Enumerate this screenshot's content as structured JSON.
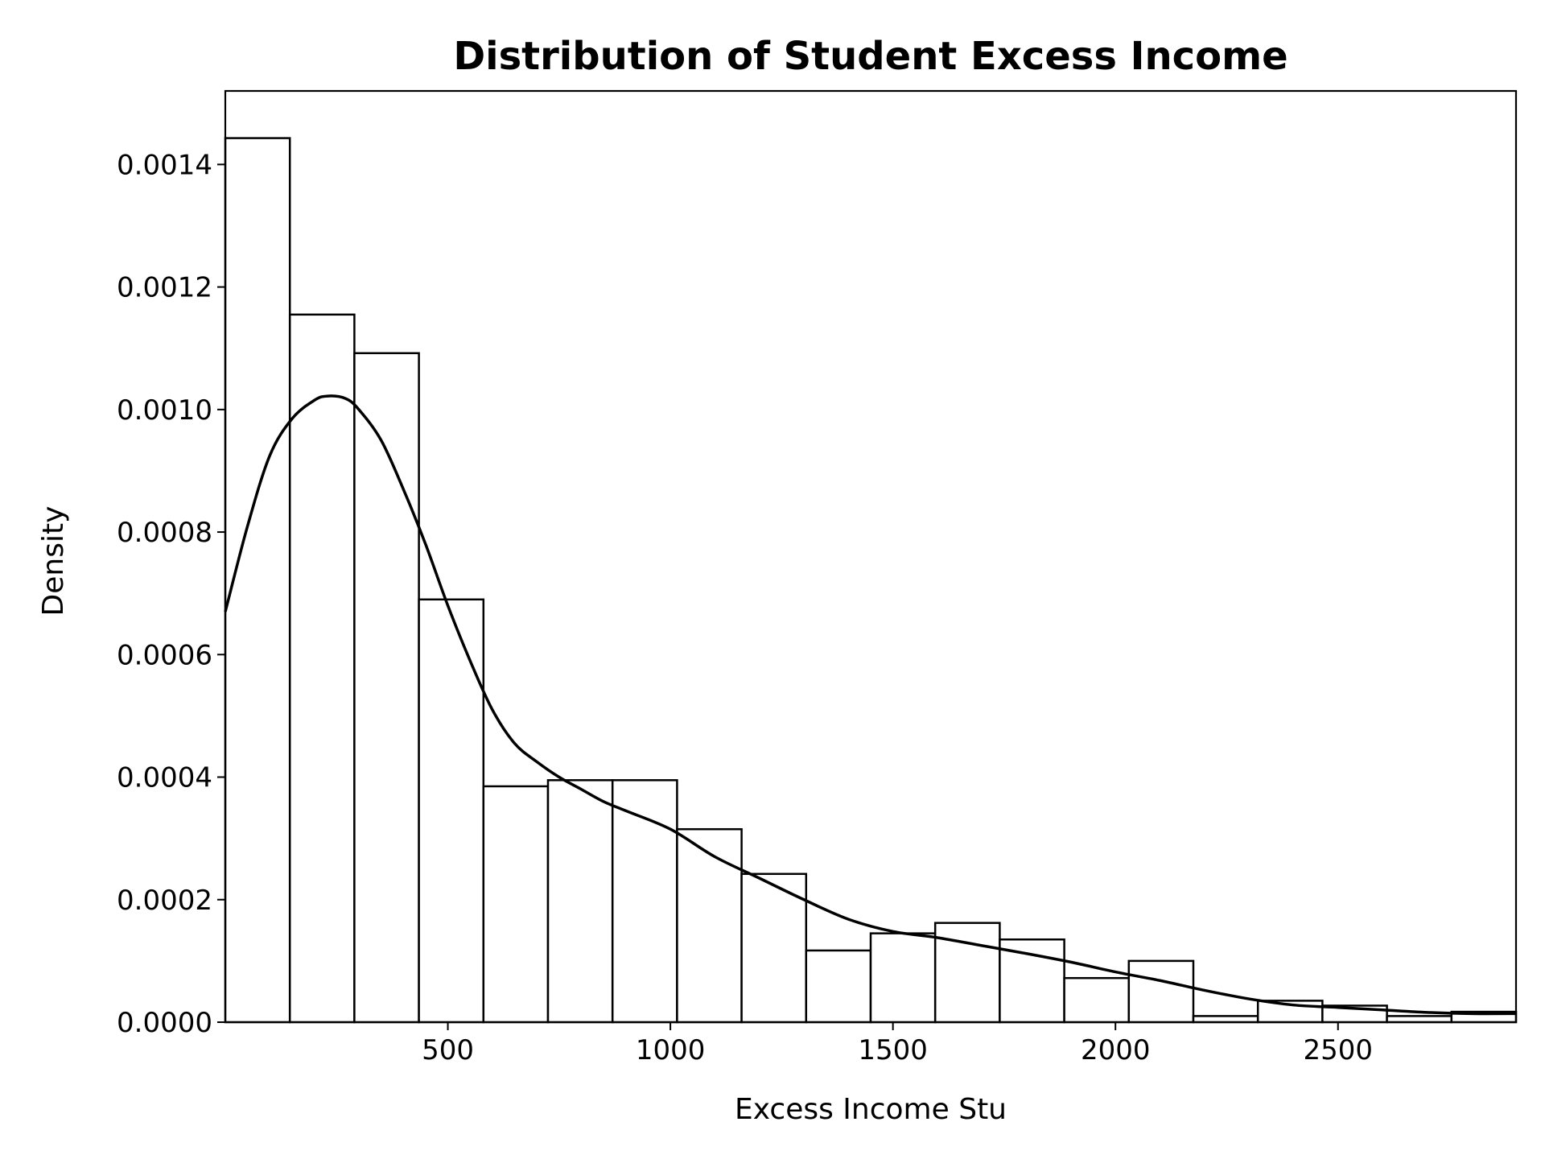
{
  "chart_data": {
    "type": "histogram",
    "title": "Distribution of Student Excess Income",
    "xlabel": "Excess Income Stu",
    "ylabel": "Density",
    "xlim": [
      0,
      2900
    ],
    "ylim": [
      0,
      0.00152
    ],
    "grid": false,
    "bar_fill": "#ffffff",
    "stroke_color": "#000000",
    "x_ticks": [
      {
        "value": 500,
        "label": "500"
      },
      {
        "value": 1000,
        "label": "1000"
      },
      {
        "value": 1500,
        "label": "1500"
      },
      {
        "value": 2000,
        "label": "2000"
      },
      {
        "value": 2500,
        "label": "2500"
      }
    ],
    "y_ticks": [
      {
        "value": 0,
        "label": "0.0000"
      },
      {
        "value": 0.0002,
        "label": "0.0002"
      },
      {
        "value": 0.0004,
        "label": "0.0004"
      },
      {
        "value": 0.0006,
        "label": "0.0006"
      },
      {
        "value": 0.0008,
        "label": "0.0008"
      },
      {
        "value": 0.001,
        "label": "0.0010"
      },
      {
        "value": 0.0012,
        "label": "0.0012"
      },
      {
        "value": 0.0014,
        "label": "0.0014"
      }
    ],
    "bins": [
      {
        "start": 0,
        "end": 145,
        "density": 0.001443
      },
      {
        "start": 145,
        "end": 290,
        "density": 0.001155
      },
      {
        "start": 290,
        "end": 435,
        "density": 0.001092
      },
      {
        "start": 435,
        "end": 580,
        "density": 0.00069
      },
      {
        "start": 580,
        "end": 725,
        "density": 0.000385
      },
      {
        "start": 725,
        "end": 870,
        "density": 0.000395
      },
      {
        "start": 870,
        "end": 1015,
        "density": 0.000395
      },
      {
        "start": 1015,
        "end": 1160,
        "density": 0.000315
      },
      {
        "start": 1160,
        "end": 1305,
        "density": 0.000242
      },
      {
        "start": 1305,
        "end": 1450,
        "density": 0.000117
      },
      {
        "start": 1450,
        "end": 1595,
        "density": 0.000145
      },
      {
        "start": 1595,
        "end": 1740,
        "density": 0.000162
      },
      {
        "start": 1740,
        "end": 1885,
        "density": 0.000135
      },
      {
        "start": 1885,
        "end": 2030,
        "density": 7.2e-05
      },
      {
        "start": 2030,
        "end": 2175,
        "density": 0.0001
      },
      {
        "start": 2175,
        "end": 2320,
        "density": 1e-05
      },
      {
        "start": 2320,
        "end": 2465,
        "density": 3.5e-05
      },
      {
        "start": 2465,
        "end": 2610,
        "density": 2.7e-05
      },
      {
        "start": 2610,
        "end": 2755,
        "density": 1e-05
      },
      {
        "start": 2755,
        "end": 2900,
        "density": 1.7e-05
      }
    ],
    "kde": {
      "x": [
        0,
        50,
        100,
        150,
        200,
        230,
        270,
        300,
        350,
        400,
        450,
        500,
        550,
        600,
        650,
        700,
        750,
        800,
        850,
        900,
        1000,
        1100,
        1200,
        1300,
        1400,
        1500,
        1600,
        1700,
        1800,
        1900,
        2000,
        2100,
        2200,
        2300,
        2400,
        2500,
        2600,
        2700,
        2800,
        2900
      ],
      "y": [
        0.00067,
        0.00081,
        0.000925,
        0.000985,
        0.001015,
        0.001022,
        0.001018,
        0.001,
        0.00095,
        0.00087,
        0.00078,
        0.00068,
        0.00059,
        0.00051,
        0.000455,
        0.000425,
        0.0004,
        0.00038,
        0.00036,
        0.000345,
        0.000315,
        0.00027,
        0.000235,
        0.0002,
        0.000168,
        0.000148,
        0.000138,
        0.000125,
        0.000112,
        9.8e-05,
        8.2e-05,
        6.8e-05,
        5.2e-05,
        3.8e-05,
        2.8e-05,
        2.4e-05,
        2e-05,
        1.6e-05,
        1.4e-05,
        1.4e-05
      ]
    }
  }
}
